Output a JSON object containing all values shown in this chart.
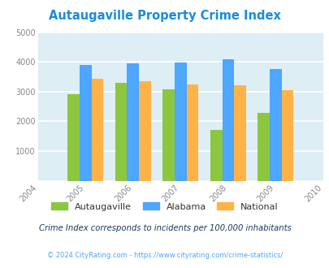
{
  "title": "Autaugaville Property Crime Index",
  "years": [
    2005,
    2006,
    2007,
    2008,
    2009
  ],
  "autaugaville": [
    2920,
    3310,
    3070,
    1700,
    2290
  ],
  "alabama": [
    3910,
    3940,
    3980,
    4080,
    3760
  ],
  "national": [
    3440,
    3340,
    3230,
    3210,
    3040
  ],
  "color_autaugaville": "#8dc63f",
  "color_alabama": "#4da6ff",
  "color_national": "#ffb347",
  "color_title": "#1a8cd8",
  "color_bg": "#ddeef4",
  "color_footnote": "#1a3a5c",
  "color_url": "#4da6ff",
  "color_tick": "#888888",
  "xlim": [
    2004,
    2010
  ],
  "ylim": [
    0,
    5000
  ],
  "yticks": [
    0,
    1000,
    2000,
    3000,
    4000,
    5000
  ],
  "xticks": [
    2004,
    2005,
    2006,
    2007,
    2008,
    2009,
    2010
  ],
  "bar_width": 0.25,
  "footnote": "Crime Index corresponds to incidents per 100,000 inhabitants",
  "copyright": "© 2024 CityRating.com - https://www.cityrating.com/crime-statistics/"
}
